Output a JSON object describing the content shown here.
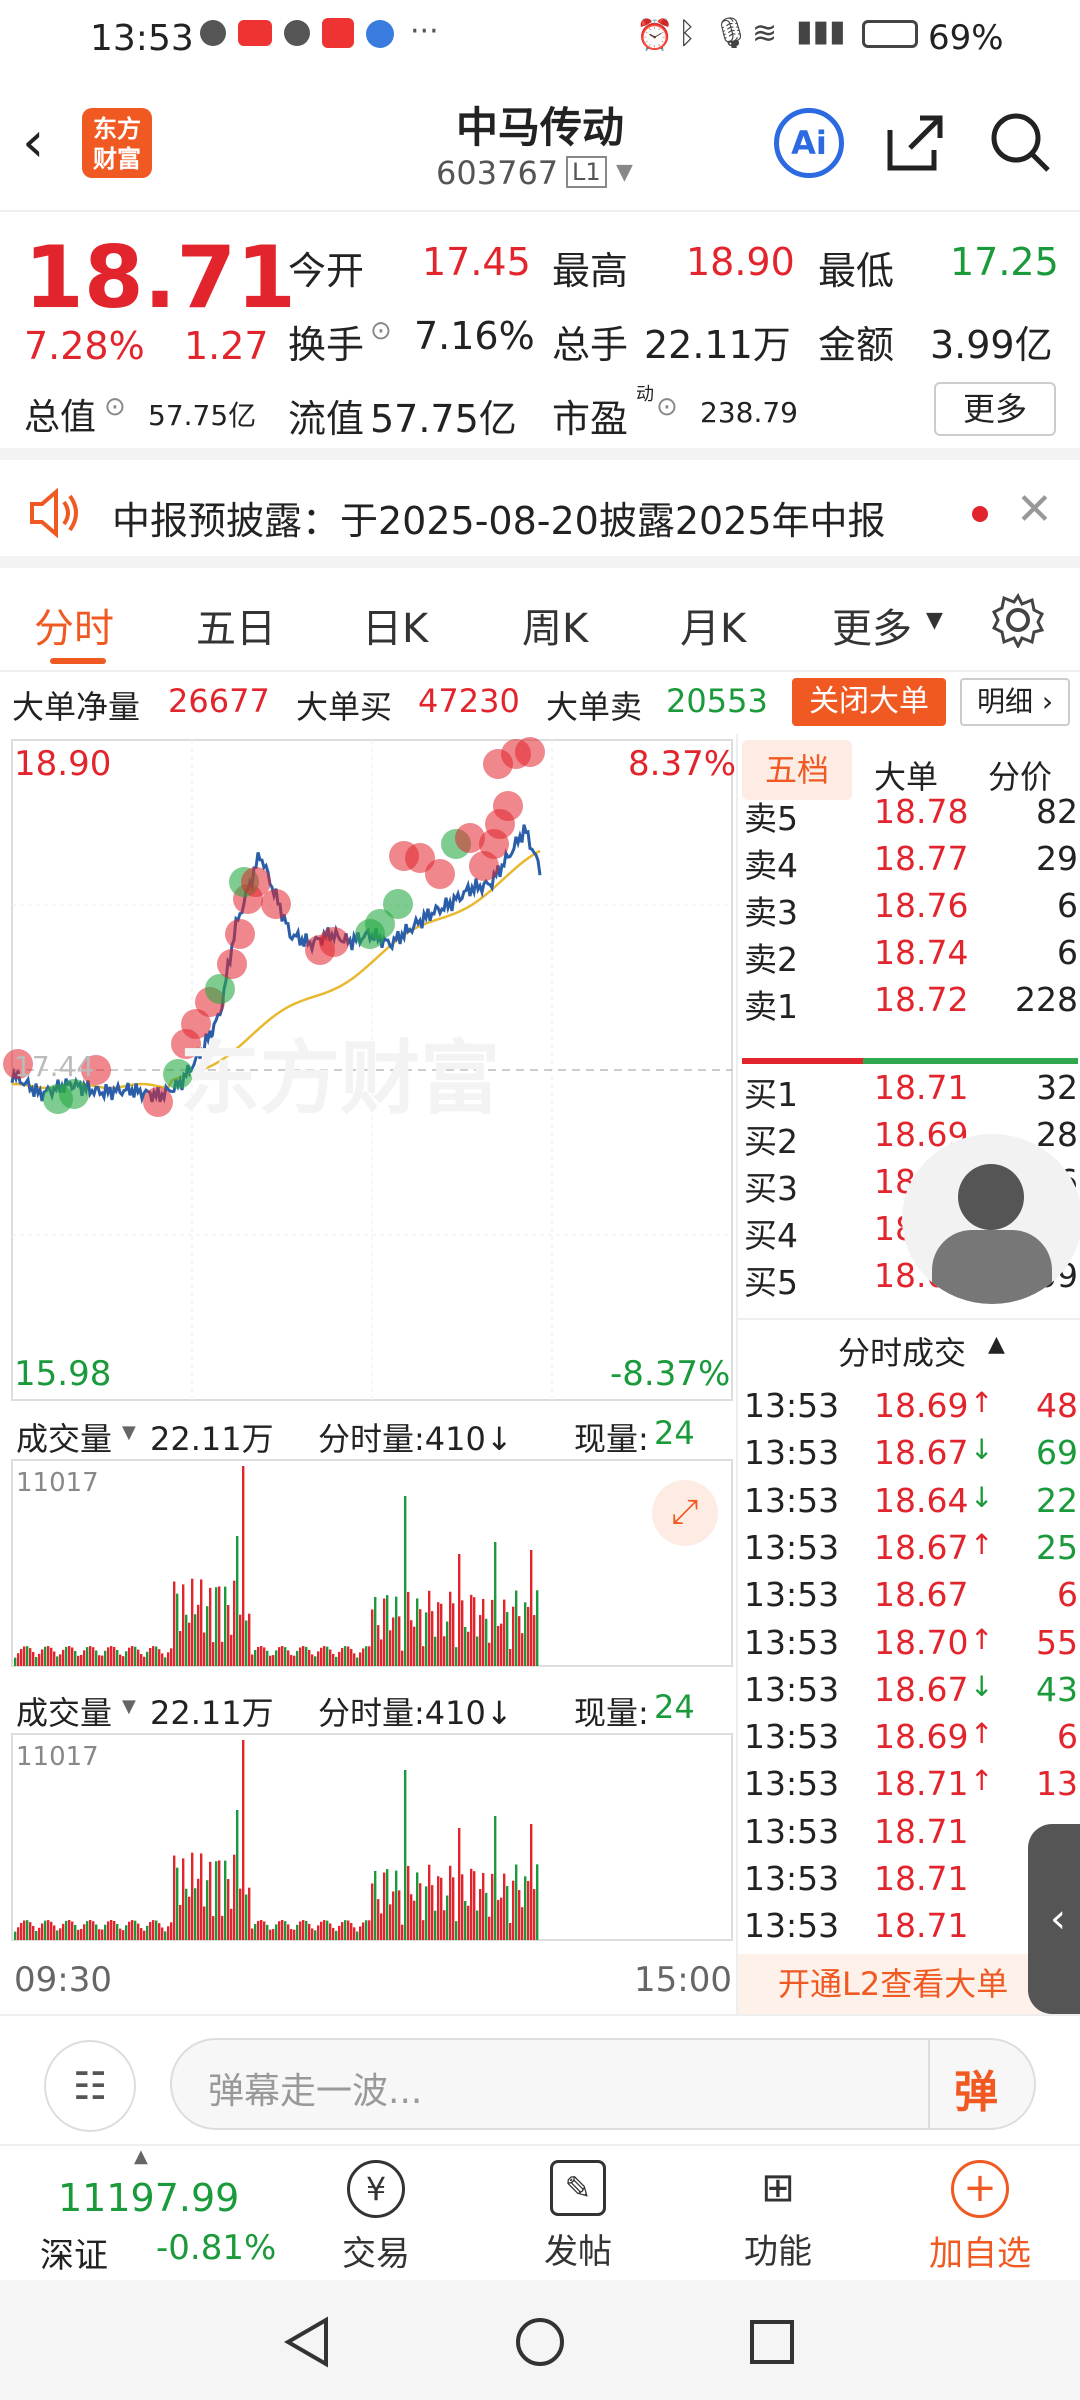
{
  "status": {
    "time": "13:53",
    "battery": "69%",
    "icons": [
      "wechat-icon",
      "huawei-icon",
      "wechat-icon",
      "weibo-icon",
      "browser-icon",
      "more-dots-icon"
    ],
    "right_icons": [
      "alarm-icon",
      "bluetooth-icon",
      "mic-icon",
      "wifi-icon",
      "signal-icon",
      "battery-icon"
    ]
  },
  "header": {
    "logo": "东方财富",
    "stock_name": "中马传动",
    "stock_code": "603767",
    "level": "L1",
    "ai_label": "Ai"
  },
  "quote": {
    "price": "18.71",
    "pct": "7.28%",
    "change": "1.27",
    "open_label": "今开",
    "open": "17.45",
    "high_label": "最高",
    "high": "18.90",
    "low_label": "最低",
    "low": "17.25",
    "turnover_label": "换手",
    "turnover": "7.16%",
    "volume_label": "总手",
    "volume": "22.11万",
    "amount_label": "金额",
    "amount": "3.99亿",
    "mktcap_label": "总值",
    "mktcap": "57.75亿",
    "float_label": "流值",
    "float": "57.75亿",
    "pe_label": "市盈",
    "pe_sup": "动",
    "pe": "238.79",
    "more_label": "更多"
  },
  "notice": {
    "text": "中报预披露：于2025-08-20披露2025年中报"
  },
  "tabs": [
    "分时",
    "五日",
    "日K",
    "周K",
    "月K",
    "更多"
  ],
  "bigorder": {
    "net_label": "大单净量",
    "net": "26677",
    "buy_label": "大单买",
    "buy": "47230",
    "sell_label": "大单卖",
    "sell": "20553",
    "close_label": "关闭大单",
    "detail_label": "明细"
  },
  "chart": {
    "top_price": "18.90",
    "top_pct": "8.37%",
    "bottom_price": "15.98",
    "bottom_pct": "-8.37%",
    "prev_close": "17.44",
    "watermark": "东方财富",
    "vol_label": "成交量",
    "vol_total": "22.11万",
    "vol_min": "分时量:410↓",
    "vol_now_label": "现量:",
    "vol_now": "24",
    "vol_max": "11017",
    "time_start": "09:30",
    "time_end": "15:00"
  },
  "orderbook": {
    "tabs": [
      "五档",
      "大单",
      "分价"
    ],
    "asks": [
      {
        "label": "卖5",
        "price": "18.78",
        "vol": "82"
      },
      {
        "label": "卖4",
        "price": "18.77",
        "vol": "29"
      },
      {
        "label": "卖3",
        "price": "18.76",
        "vol": "6"
      },
      {
        "label": "卖2",
        "price": "18.74",
        "vol": "6"
      },
      {
        "label": "卖1",
        "price": "18.72",
        "vol": "228"
      }
    ],
    "bids": [
      {
        "label": "买1",
        "price": "18.71",
        "vol": "32"
      },
      {
        "label": "买2",
        "price": "18.69",
        "vol": "28"
      },
      {
        "label": "买3",
        "price": "18.68",
        "vol": "16"
      },
      {
        "label": "买4",
        "price": "18.66",
        "vol": "53"
      },
      {
        "label": "买5",
        "price": "18.65",
        "vol": "59"
      }
    ]
  },
  "ticks": {
    "title": "分时成交",
    "rows": [
      {
        "t": "13:53",
        "p": "18.69",
        "a": "↑",
        "v": "48",
        "c": "red"
      },
      {
        "t": "13:53",
        "p": "18.67",
        "a": "↓",
        "v": "69",
        "c": "green"
      },
      {
        "t": "13:53",
        "p": "18.64",
        "a": "↓",
        "v": "22",
        "c": "green"
      },
      {
        "t": "13:53",
        "p": "18.67",
        "a": "↑",
        "v": "25",
        "c": "green"
      },
      {
        "t": "13:53",
        "p": "18.67",
        "a": "",
        "v": "6",
        "c": "red"
      },
      {
        "t": "13:53",
        "p": "18.70",
        "a": "↑",
        "v": "55",
        "c": "red"
      },
      {
        "t": "13:53",
        "p": "18.67",
        "a": "↓",
        "v": "43",
        "c": "green"
      },
      {
        "t": "13:53",
        "p": "18.69",
        "a": "↑",
        "v": "6",
        "c": "red"
      },
      {
        "t": "13:53",
        "p": "18.71",
        "a": "↑",
        "v": "13",
        "c": "red"
      },
      {
        "t": "13:53",
        "p": "18.71",
        "a": "",
        "v": "",
        "c": "red"
      },
      {
        "t": "13:53",
        "p": "18.71",
        "a": "",
        "v": "",
        "c": "red"
      },
      {
        "t": "13:53",
        "p": "18.71",
        "a": "",
        "v": "",
        "c": "red"
      }
    ],
    "l2": "开通L2查看大单"
  },
  "danmu": {
    "placeholder": "弹幕走一波...",
    "send": "弹"
  },
  "bottom": {
    "index_value": "11197.99",
    "index_name": "深证",
    "index_pct": "-0.81%",
    "items": [
      "交易",
      "发帖",
      "功能",
      "加自选"
    ]
  },
  "colors": {
    "up": "#e2252d",
    "down": "#1a9a3a",
    "accent": "#f05a22",
    "price_line": "#2b5ea8",
    "avg_line": "#e8b830"
  }
}
